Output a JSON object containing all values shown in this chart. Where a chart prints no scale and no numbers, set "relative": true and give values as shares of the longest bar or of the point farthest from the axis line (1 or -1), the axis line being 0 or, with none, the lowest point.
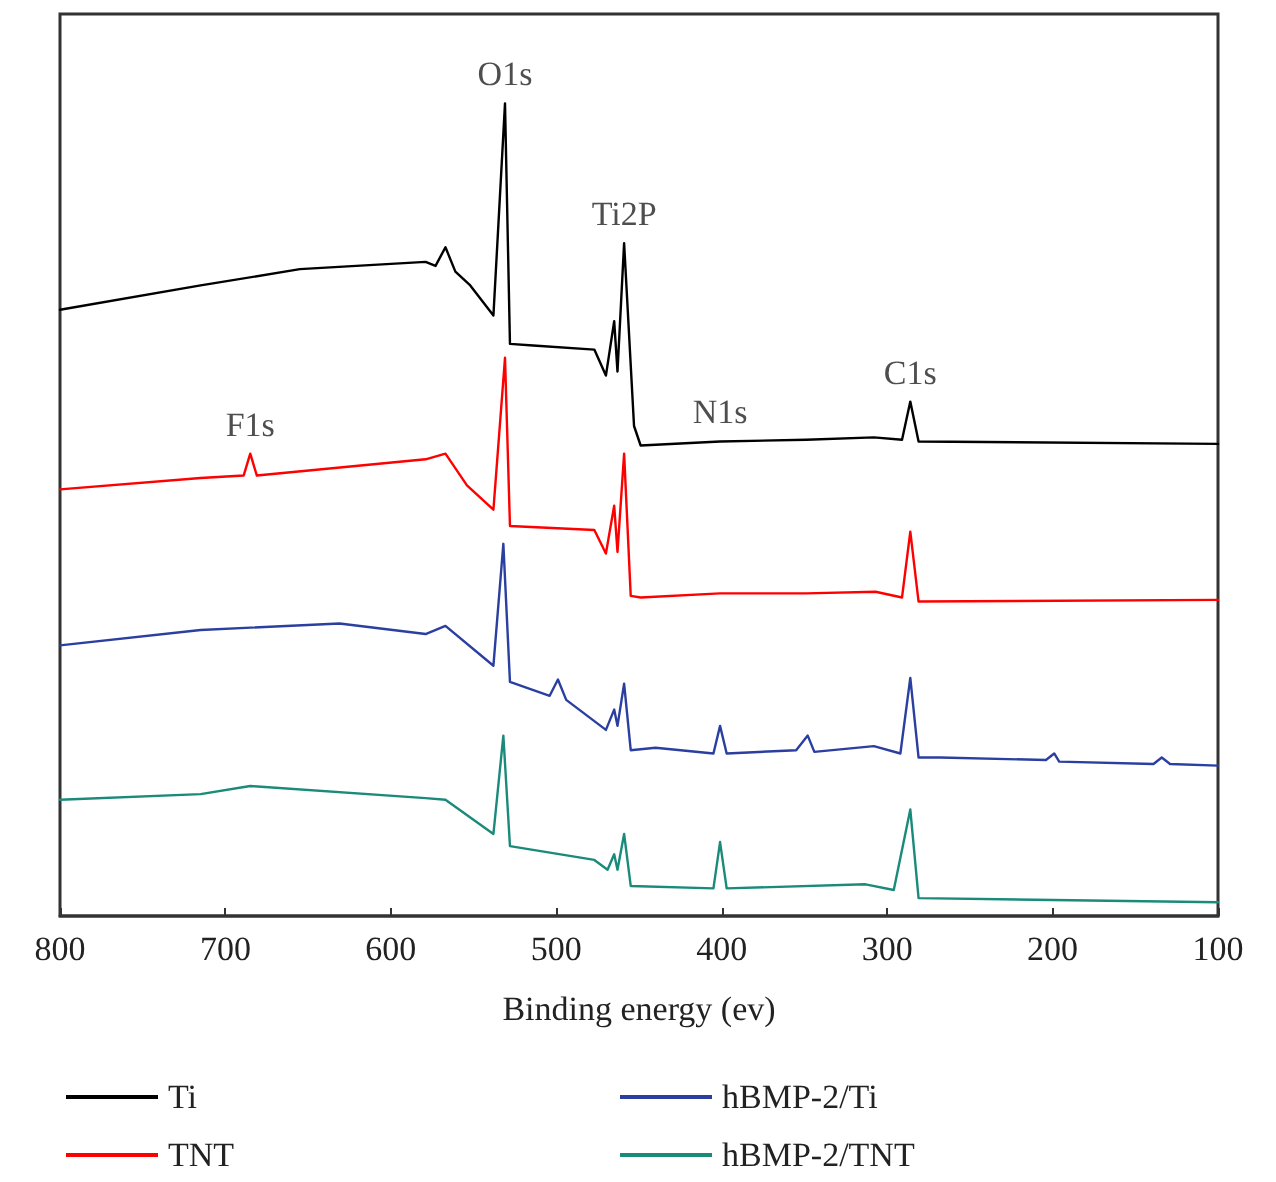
{
  "chart_data": {
    "type": "line",
    "relative": true,
    "xlabel": "Binding energy (ev)",
    "xlim": [
      800,
      100
    ],
    "xticks": [
      800,
      700,
      600,
      500,
      400,
      300,
      200,
      100
    ],
    "legend": "bottom",
    "grid": false,
    "marker": "none",
    "line_style": "solid",
    "annotations": [
      {
        "text": "O1s",
        "x": 531,
        "y": 1.0
      },
      {
        "text": "Ti2P",
        "x": 459,
        "y": 0.828
      },
      {
        "text": "N1s",
        "x": 401,
        "y": 0.584
      },
      {
        "text": "C1s",
        "x": 286,
        "y": 0.633
      },
      {
        "text": "F1s",
        "x": 685,
        "y": 0.569
      }
    ],
    "series": [
      {
        "name": "Ti",
        "color": "#000000",
        "x": [
          800,
          715,
          655,
          579,
          573,
          567,
          561,
          552,
          538,
          531,
          528,
          514,
          477,
          470,
          465,
          463,
          459,
          453,
          449,
          401,
          349,
          308,
          291,
          286,
          281,
          100
        ],
        "values": [
          0.746,
          0.776,
          0.796,
          0.805,
          0.8,
          0.823,
          0.793,
          0.776,
          0.739,
          1.0,
          0.704,
          0.702,
          0.697,
          0.665,
          0.732,
          0.67,
          0.828,
          0.603,
          0.579,
          0.584,
          0.586,
          0.589,
          0.586,
          0.633,
          0.584,
          0.581
        ]
      },
      {
        "name": "TNT",
        "color": "#ff0000",
        "x": [
          800,
          715,
          689,
          685,
          681,
          579,
          567,
          554,
          538,
          531,
          528,
          477,
          470,
          465,
          463,
          459,
          455,
          449,
          401,
          349,
          307,
          291,
          286,
          281,
          100
        ],
        "values": [
          0.525,
          0.539,
          0.542,
          0.569,
          0.542,
          0.562,
          0.569,
          0.53,
          0.5,
          0.687,
          0.48,
          0.475,
          0.446,
          0.505,
          0.448,
          0.569,
          0.394,
          0.392,
          0.397,
          0.397,
          0.399,
          0.392,
          0.473,
          0.387,
          0.389
        ]
      },
      {
        "name": "hBMP-2/Ti",
        "color": "#2b3fa0",
        "x": [
          800,
          715,
          631,
          579,
          567,
          538,
          532,
          528,
          504,
          499,
          494,
          470,
          465,
          463,
          459,
          455,
          440,
          405,
          401,
          397,
          355,
          348,
          344,
          308,
          292,
          286,
          281,
          268,
          204,
          199,
          196,
          139,
          134,
          129,
          100
        ],
        "values": [
          0.333,
          0.352,
          0.36,
          0.347,
          0.357,
          0.308,
          0.458,
          0.288,
          0.271,
          0.291,
          0.266,
          0.229,
          0.254,
          0.234,
          0.286,
          0.204,
          0.207,
          0.2,
          0.234,
          0.2,
          0.204,
          0.222,
          0.202,
          0.209,
          0.2,
          0.293,
          0.195,
          0.195,
          0.192,
          0.2,
          0.19,
          0.187,
          0.195,
          0.187,
          0.185
        ]
      },
      {
        "name": "hBMP-2/TNT",
        "color": "#1a8a7a",
        "x": [
          800,
          715,
          685,
          579,
          567,
          538,
          532,
          528,
          477,
          469,
          465,
          463,
          459,
          455,
          405,
          401,
          397,
          313,
          296,
          286,
          281,
          100
        ],
        "values": [
          0.143,
          0.15,
          0.16,
          0.145,
          0.143,
          0.101,
          0.222,
          0.086,
          0.069,
          0.057,
          0.076,
          0.057,
          0.101,
          0.037,
          0.034,
          0.091,
          0.034,
          0.039,
          0.032,
          0.131,
          0.022,
          0.017
        ]
      }
    ]
  }
}
